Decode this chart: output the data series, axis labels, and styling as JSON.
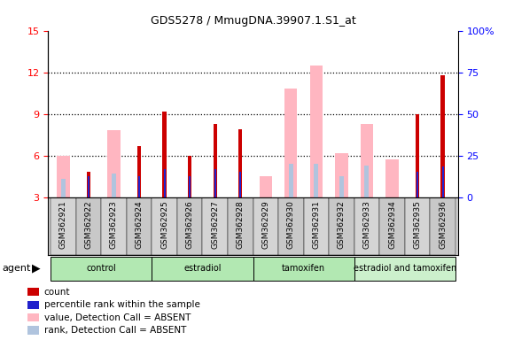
{
  "title": "GDS5278 / MmugDNA.39907.1.S1_at",
  "samples": [
    "GSM362921",
    "GSM362922",
    "GSM362923",
    "GSM362924",
    "GSM362925",
    "GSM362926",
    "GSM362927",
    "GSM362928",
    "GSM362929",
    "GSM362930",
    "GSM362931",
    "GSM362932",
    "GSM362933",
    "GSM362934",
    "GSM362935",
    "GSM362936"
  ],
  "group_bounds": [
    [
      0,
      3,
      "control"
    ],
    [
      4,
      7,
      "estradiol"
    ],
    [
      8,
      11,
      "tamoxifen"
    ],
    [
      12,
      15,
      "estradiol and tamoxifen"
    ]
  ],
  "group_colors": [
    "#b2e8b2",
    "#b2e8b2",
    "#b2e8b2",
    "#ccf0cc"
  ],
  "count_values": [
    0,
    4.8,
    0,
    6.7,
    9.2,
    6.0,
    8.3,
    7.9,
    0,
    0,
    0,
    0,
    0,
    0,
    9.0,
    11.8
  ],
  "rank_values": [
    0,
    4.5,
    0,
    4.5,
    5.0,
    4.5,
    5.0,
    4.8,
    0,
    0,
    0,
    0,
    0,
    0,
    4.8,
    5.2
  ],
  "absent_value_bars": [
    6.0,
    0,
    7.8,
    0,
    0,
    0,
    0,
    0,
    4.5,
    10.8,
    12.5,
    6.2,
    8.3,
    5.7,
    0,
    0
  ],
  "absent_rank_bars": [
    4.3,
    0,
    4.7,
    0,
    0,
    0,
    0,
    0,
    0,
    5.4,
    5.4,
    4.5,
    5.3,
    0,
    0,
    0
  ],
  "ylim_left": [
    3,
    15
  ],
  "yticks_left": [
    3,
    6,
    9,
    12,
    15
  ],
  "yticks_right": [
    0,
    25,
    50,
    75,
    100
  ],
  "ytick_labels_right": [
    "0",
    "25",
    "50",
    "75",
    "100%"
  ],
  "count_color": "#cc0000",
  "rank_color": "#2222cc",
  "absent_value_color": "#ffb6c1",
  "absent_rank_color": "#b0c4de",
  "xticklabel_bg": "#d0d0d0",
  "bar_width": 0.5,
  "legend_items": [
    {
      "label": "count",
      "color": "#cc0000"
    },
    {
      "label": "percentile rank within the sample",
      "color": "#2222cc"
    },
    {
      "label": "value, Detection Call = ABSENT",
      "color": "#ffb6c1"
    },
    {
      "label": "rank, Detection Call = ABSENT",
      "color": "#b0c4de"
    }
  ]
}
